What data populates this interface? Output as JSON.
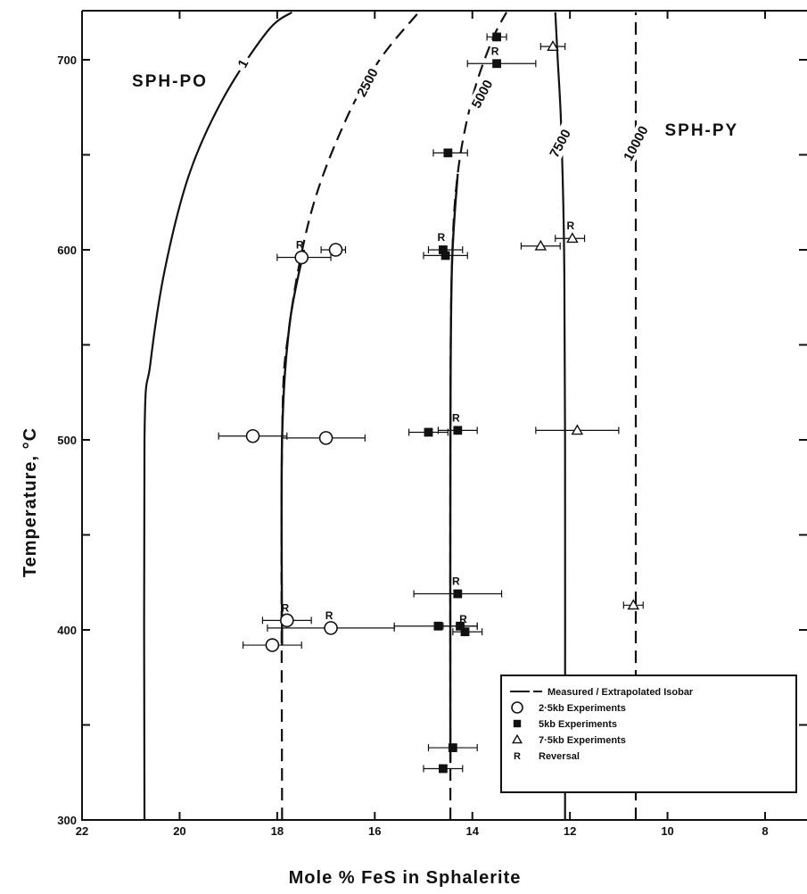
{
  "chart_data": {
    "type": "line",
    "xlabel": "Mole % FeS in Sphalerite",
    "ylabel": "Temperature, °C",
    "xlim": [
      22,
      7
    ],
    "ylim": [
      300,
      725
    ],
    "x_reversed": true,
    "x_ticks": [
      22,
      20,
      18,
      16,
      14,
      12,
      10,
      8
    ],
    "y_ticks": [
      300,
      400,
      500,
      600,
      700
    ],
    "y_tick_labels": [
      "300",
      "",
      "400",
      "",
      "500",
      "",
      "600",
      "",
      "700"
    ],
    "y_minor_ticks": [
      350,
      450,
      550,
      650
    ],
    "regions": [
      {
        "label": "SPH-PO",
        "x": 20.2,
        "y": 686
      },
      {
        "label": "SPH-PY",
        "x": 9.3,
        "y": 660
      }
    ],
    "series": [
      {
        "name": "1",
        "style": "solid",
        "points": [
          [
            20.72,
            300
          ],
          [
            20.72,
            500
          ],
          [
            20.6,
            540
          ],
          [
            20.3,
            590
          ],
          [
            19.8,
            640
          ],
          [
            19.1,
            680
          ],
          [
            18.2,
            715
          ],
          [
            17.7,
            725
          ]
        ],
        "label_at": [
          18.7,
          698
        ]
      },
      {
        "name": "2500",
        "style": "mixed",
        "points": [
          [
            17.9,
            300
          ],
          [
            17.9,
            500
          ],
          [
            17.75,
            560
          ],
          [
            17.3,
            620
          ],
          [
            16.6,
            668
          ],
          [
            15.9,
            700
          ],
          [
            15.1,
            725
          ]
        ],
        "solid_range": [
          392,
          600
        ],
        "label_at": [
          16.15,
          688
        ]
      },
      {
        "name": "5000",
        "style": "mixed",
        "points": [
          [
            14.45,
            300
          ],
          [
            14.45,
            500
          ],
          [
            14.42,
            590
          ],
          [
            14.3,
            640
          ],
          [
            14.0,
            680
          ],
          [
            13.6,
            710
          ],
          [
            13.3,
            725
          ]
        ],
        "solid_range": [
          330,
          640
        ],
        "label_at": [
          13.8,
          682
        ]
      },
      {
        "name": "7500",
        "style": "solid",
        "points": [
          [
            12.1,
            300
          ],
          [
            12.1,
            500
          ],
          [
            12.12,
            600
          ],
          [
            12.18,
            665
          ],
          [
            12.25,
            700
          ],
          [
            12.3,
            725
          ]
        ],
        "label_at": [
          12.2,
          656
        ]
      },
      {
        "name": "10000",
        "style": "dashed",
        "points": [
          [
            10.65,
            300
          ],
          [
            10.65,
            500
          ],
          [
            10.65,
            600
          ],
          [
            10.65,
            700
          ],
          [
            10.65,
            725
          ]
        ],
        "label_at": [
          10.65,
          656
        ]
      }
    ],
    "experiments": [
      {
        "set": "2.5kb Experiments",
        "marker": "circle",
        "x": 17.5,
        "y": 596,
        "xerr": [
          18.0,
          16.9
        ],
        "reversal": true
      },
      {
        "set": "2.5kb Experiments",
        "marker": "circle",
        "x": 16.8,
        "y": 600,
        "xerr": [
          17.1,
          16.6
        ],
        "reversal": false
      },
      {
        "set": "2.5kb Experiments",
        "marker": "circle",
        "x": 18.5,
        "y": 502,
        "xerr": [
          19.2,
          17.8
        ],
        "reversal": false
      },
      {
        "set": "2.5kb Experiments",
        "marker": "circle",
        "x": 17.0,
        "y": 501,
        "xerr": [
          17.9,
          16.2
        ],
        "reversal": false
      },
      {
        "set": "2.5kb Experiments",
        "marker": "circle",
        "x": 17.8,
        "y": 405,
        "xerr": [
          18.3,
          17.3
        ],
        "reversal": true
      },
      {
        "set": "2.5kb Experiments",
        "marker": "circle",
        "x": 16.9,
        "y": 401,
        "xerr": [
          18.2,
          15.6
        ],
        "reversal": true
      },
      {
        "set": "2.5kb Experiments",
        "marker": "circle",
        "x": 18.1,
        "y": 392,
        "xerr": [
          18.7,
          17.5
        ],
        "reversal": false
      },
      {
        "set": "5kb Experiments",
        "marker": "square",
        "x": 13.5,
        "y": 712,
        "xerr": [
          13.7,
          13.3
        ],
        "reversal": false
      },
      {
        "set": "5kb Experiments",
        "marker": "square",
        "x": 13.5,
        "y": 698,
        "xerr": [
          14.1,
          12.7
        ],
        "reversal": true
      },
      {
        "set": "5kb Experiments",
        "marker": "square",
        "x": 14.5,
        "y": 651,
        "xerr": [
          14.8,
          14.1
        ],
        "reversal": false
      },
      {
        "set": "5kb Experiments",
        "marker": "square",
        "x": 14.6,
        "y": 600,
        "xerr": [
          14.9,
          14.2
        ],
        "reversal": true
      },
      {
        "set": "5kb Experiments",
        "marker": "square",
        "x": 14.55,
        "y": 597,
        "xerr": [
          15.0,
          14.1
        ],
        "reversal": false
      },
      {
        "set": "5kb Experiments",
        "marker": "square",
        "x": 14.9,
        "y": 504,
        "xerr": [
          15.3,
          14.5
        ],
        "reversal": false
      },
      {
        "set": "5kb Experiments",
        "marker": "square",
        "x": 14.3,
        "y": 505,
        "xerr": [
          14.7,
          13.9
        ],
        "reversal": true
      },
      {
        "set": "5kb Experiments",
        "marker": "square",
        "x": 14.3,
        "y": 419,
        "xerr": [
          15.2,
          13.4
        ],
        "reversal": true
      },
      {
        "set": "5kb Experiments",
        "marker": "square",
        "x": 14.7,
        "y": 402,
        "xerr": [
          15.6,
          13.9
        ],
        "reversal": false
      },
      {
        "set": "5kb Experiments",
        "marker": "square",
        "x": 14.25,
        "y": 402,
        "xerr": [
          14.6,
          13.9
        ],
        "reversal": false
      },
      {
        "set": "5kb Experiments",
        "marker": "square",
        "x": 14.15,
        "y": 399,
        "xerr": [
          14.4,
          13.8
        ],
        "reversal": true
      },
      {
        "set": "5kb Experiments",
        "marker": "square",
        "x": 14.4,
        "y": 338,
        "xerr": [
          14.9,
          13.9
        ],
        "reversal": false
      },
      {
        "set": "5kb Experiments",
        "marker": "square",
        "x": 14.6,
        "y": 327,
        "xerr": [
          15.0,
          14.2
        ],
        "reversal": false
      },
      {
        "set": "7.5kb Experiments",
        "marker": "triangle",
        "x": 12.35,
        "y": 707,
        "xerr": [
          12.6,
          12.1
        ],
        "reversal": false
      },
      {
        "set": "7.5kb Experiments",
        "marker": "triangle",
        "x": 11.95,
        "y": 606,
        "xerr": [
          12.3,
          11.7
        ],
        "reversal": true
      },
      {
        "set": "7.5kb Experiments",
        "marker": "triangle",
        "x": 12.6,
        "y": 602,
        "xerr": [
          13.0,
          12.2
        ],
        "reversal": false
      },
      {
        "set": "7.5kb Experiments",
        "marker": "triangle",
        "x": 11.85,
        "y": 505,
        "xerr": [
          12.7,
          11.0
        ],
        "reversal": false
      },
      {
        "set": "7.5kb Experiments",
        "marker": "triangle",
        "x": 10.7,
        "y": 413,
        "xerr": [
          10.9,
          10.5
        ],
        "reversal": false
      }
    ],
    "legend": {
      "placement": "bottom-right",
      "items": [
        {
          "marker": "isobar",
          "label": "Measured / Extrapolated Isobar"
        },
        {
          "marker": "circle",
          "label": "2·5kb Experiments"
        },
        {
          "marker": "square",
          "label": "5kb Experiments"
        },
        {
          "marker": "triangle",
          "label": "7·5kb Experiments"
        },
        {
          "marker": "R",
          "label": "Reversal"
        }
      ]
    },
    "reversal_symbol": "R"
  }
}
